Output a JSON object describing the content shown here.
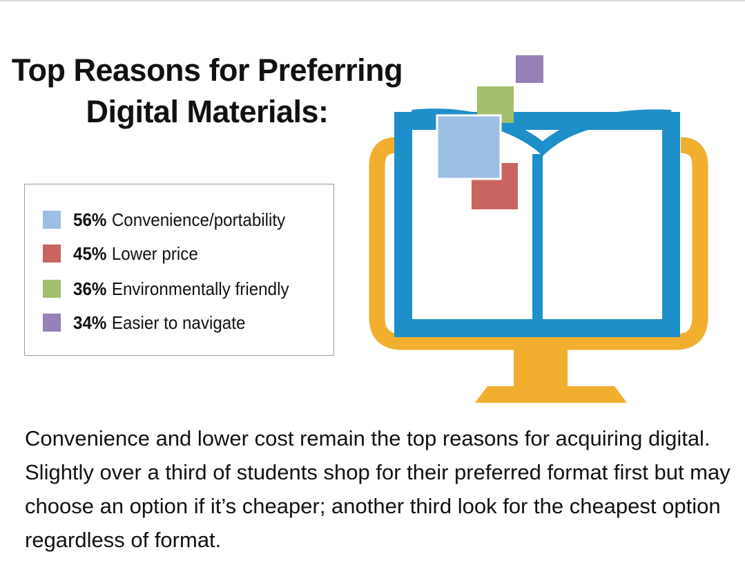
{
  "title": {
    "line1": "Top Reasons for Preferring",
    "line2": "Digital Materials:"
  },
  "chart_data": {
    "type": "bar",
    "categories": [
      "Convenience/portability",
      "Lower price",
      "Environmentally friendly",
      "Easier to navigate"
    ],
    "values": [
      56,
      45,
      36,
      34
    ],
    "labels": [
      "56%",
      "45%",
      "36%",
      "34%"
    ],
    "colors": [
      "#9dbfe3",
      "#c96561",
      "#a3bf6b",
      "#9580b7"
    ],
    "legend_position": "left"
  },
  "illustration": {
    "icon": "computer-monitor-open-book-icon",
    "colors": {
      "monitor": "#f2ae2f",
      "book": "#1e8fc9"
    }
  },
  "caption": "Convenience and lower cost remain the top reasons for acquiring digital. Slightly over a third of students shop for their preferred format first but may choose an option if it’s cheaper; another third look for the cheapest option regardless of format."
}
